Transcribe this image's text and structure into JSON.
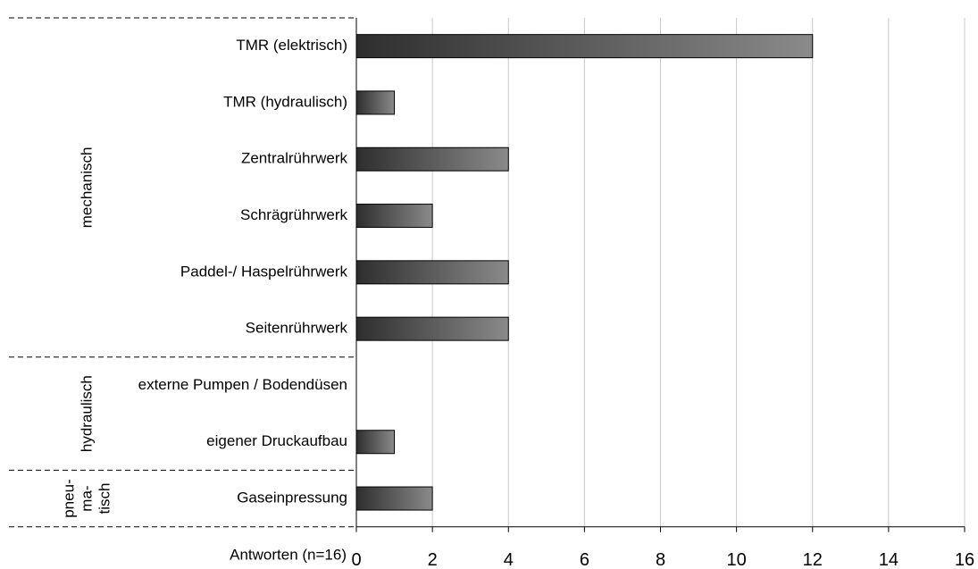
{
  "chart_data": {
    "type": "bar",
    "orientation": "horizontal",
    "categories": [
      "TMR (elektrisch)",
      "TMR (hydraulisch)",
      "Zentralrührwerk",
      "Schrägrührwerk",
      "Paddel-/ Haspelrührwerk",
      "Seitenrührwerk",
      "externe Pumpen / Bodendüsen",
      "eigener Druckaufbau",
      "Gaseinpressung"
    ],
    "values": [
      12,
      1,
      4,
      2,
      4,
      4,
      0,
      1,
      2
    ],
    "groups": [
      {
        "label": [
          "mechanisch"
        ]
      },
      {
        "label": [
          "hydraulisch"
        ]
      },
      {
        "label": [
          "pneu-",
          "ma-",
          "tisch"
        ]
      }
    ],
    "xlabel": "Antworten (n=16)",
    "xlim": [
      0,
      16
    ],
    "xticks": [
      0,
      2,
      4,
      6,
      8,
      10,
      12,
      14,
      16
    ],
    "color": [
      "#2e2e2e",
      "#8a8a8a"
    ],
    "grid": true
  }
}
